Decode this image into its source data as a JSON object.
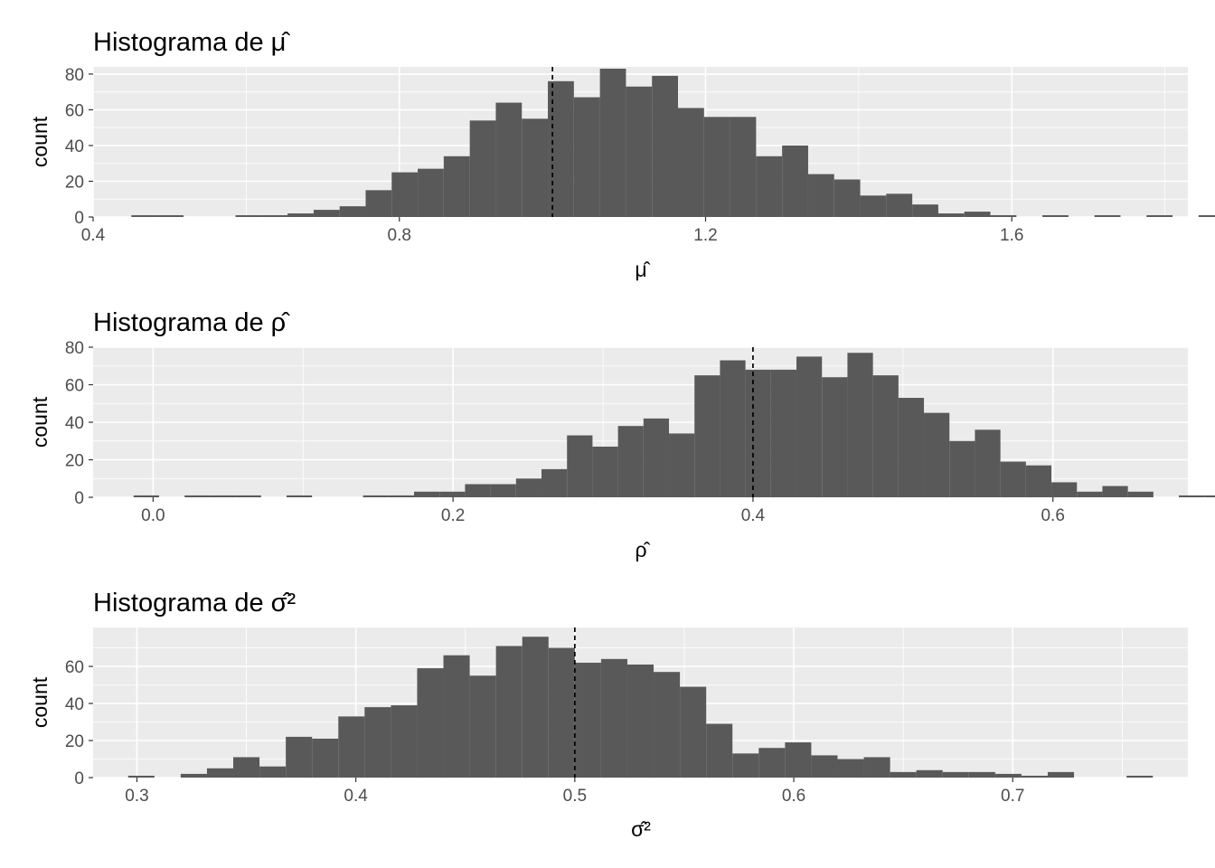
{
  "chart_data": [
    {
      "type": "bar",
      "title": "Histograma de μ̂",
      "xlabel": "μ̂",
      "ylabel": "count",
      "xlim": [
        0.4,
        1.83
      ],
      "ylim": [
        0,
        84
      ],
      "x_ticks": [
        0.4,
        0.8,
        1.2,
        1.6
      ],
      "x_tick_labels": [
        "0.4",
        "0.8",
        "1.2",
        "1.6"
      ],
      "y_ticks": [
        0,
        20,
        40,
        60,
        80
      ],
      "y_tick_labels": [
        "0",
        "20",
        "40",
        "60",
        "80"
      ],
      "bin_start": 0.45,
      "bin_width": 0.034,
      "counts": [
        1,
        1,
        0,
        0,
        1,
        1,
        2,
        4,
        6,
        15,
        25,
        27,
        34,
        54,
        64,
        55,
        76,
        67,
        83,
        73,
        79,
        61,
        56,
        56,
        34,
        40,
        24,
        21,
        12,
        13,
        7,
        2,
        3,
        1,
        0,
        1,
        0,
        1,
        0,
        1,
        0,
        1
      ],
      "reference_x": 1.0,
      "grid": true,
      "bar_color": "#595959",
      "panel_background": "#ebebeb"
    },
    {
      "type": "bar",
      "title": "Histograma de ρ̂",
      "xlabel": "ρ̂",
      "ylabel": "count",
      "xlim": [
        -0.04,
        0.69
      ],
      "ylim": [
        0,
        80
      ],
      "x_ticks": [
        0.0,
        0.2,
        0.4,
        0.6
      ],
      "x_tick_labels": [
        "0.0",
        "0.2",
        "0.4",
        "0.6"
      ],
      "y_ticks": [
        0,
        20,
        40,
        60,
        80
      ],
      "y_tick_labels": [
        "0",
        "20",
        "40",
        "60",
        "80"
      ],
      "bin_start": -0.013,
      "bin_width": 0.017,
      "counts": [
        1,
        0,
        1,
        1,
        1,
        0,
        1,
        0,
        0,
        1,
        1,
        3,
        3,
        7,
        7,
        10,
        15,
        33,
        27,
        38,
        42,
        34,
        65,
        73,
        68,
        68,
        75,
        64,
        77,
        65,
        53,
        45,
        30,
        36,
        19,
        17,
        8,
        3,
        6,
        3,
        0,
        1,
        1
      ],
      "reference_x": 0.4,
      "grid": true,
      "bar_color": "#595959",
      "panel_background": "#ebebeb"
    },
    {
      "type": "bar",
      "title": "Histograma de σ̂²",
      "xlabel": "σ̂²",
      "ylabel": "count",
      "xlim": [
        0.28,
        0.78
      ],
      "ylim": [
        0,
        81
      ],
      "x_ticks": [
        0.3,
        0.4,
        0.5,
        0.6,
        0.7
      ],
      "x_tick_labels": [
        "0.3",
        "0.4",
        "0.5",
        "0.6",
        "0.7"
      ],
      "y_ticks": [
        0,
        20,
        40,
        60
      ],
      "y_tick_labels": [
        "0",
        "20",
        "40",
        "60"
      ],
      "bin_start": 0.296,
      "bin_width": 0.012,
      "counts": [
        1,
        0,
        2,
        5,
        11,
        6,
        22,
        21,
        33,
        38,
        39,
        59,
        66,
        55,
        71,
        76,
        70,
        62,
        64,
        61,
        57,
        49,
        29,
        13,
        16,
        19,
        12,
        10,
        11,
        3,
        4,
        3,
        3,
        2,
        1,
        3,
        0,
        0,
        1
      ],
      "reference_x": 0.5,
      "grid": true,
      "bar_color": "#595959",
      "panel_background": "#ebebeb"
    }
  ]
}
